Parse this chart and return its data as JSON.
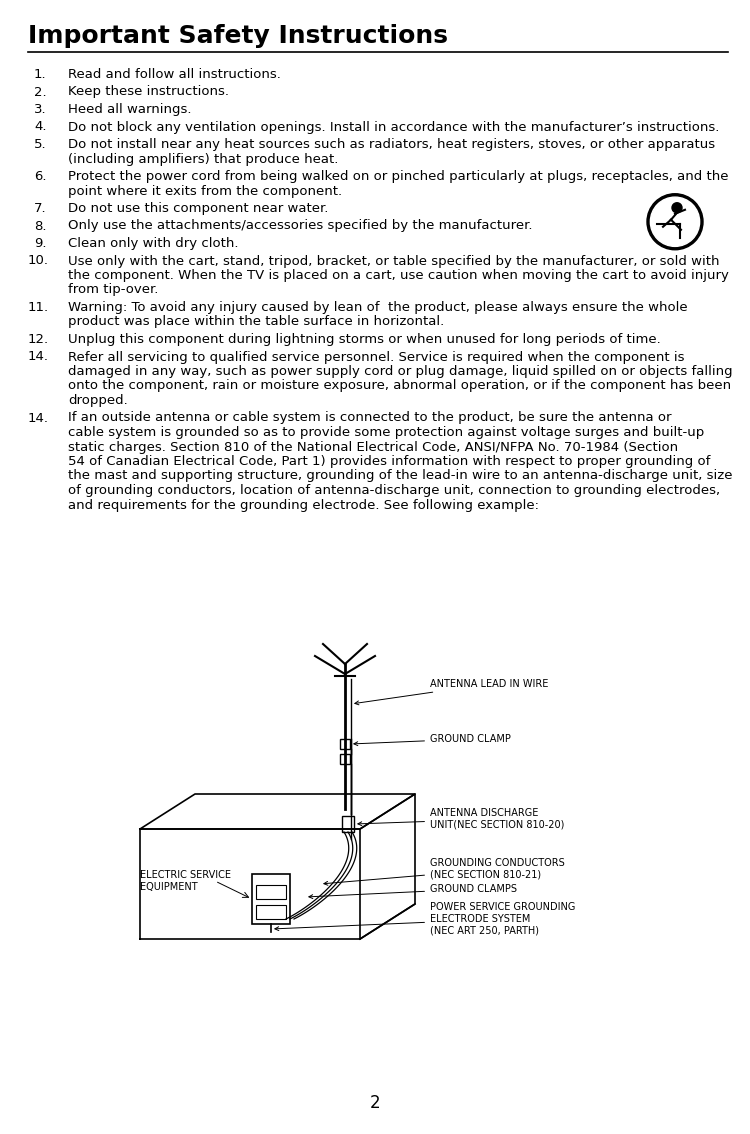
{
  "title": "Important Safety Instructions",
  "title_fontsize": 18,
  "body_fontsize": 9.5,
  "small_fontsize": 7.5,
  "page_number": "2",
  "bg_color": "#ffffff",
  "text_color": "#000000",
  "items": [
    {
      "num": "1.",
      "text": "Read and follow all instructions."
    },
    {
      "num": "2.",
      "text": "Keep these instructions."
    },
    {
      "num": "3.",
      "text": "Heed all warnings."
    },
    {
      "num": "4.",
      "text": "Do not block any ventilation openings. Install in accordance with the manufacturer’s instructions."
    },
    {
      "num": "5.",
      "text": "Do not install near any heat sources such as radiators, heat registers, stoves, or other apparatus\n(including amplifiers) that produce heat."
    },
    {
      "num": "6.",
      "text": "Protect the power cord from being walked on or pinched particularly at plugs, receptacles, and the\npoint where it exits from the component."
    },
    {
      "num": "7.",
      "text": "Do not use this component near water."
    },
    {
      "num": "8.",
      "text": "Only use the attachments/accessories specified by the manufacturer."
    },
    {
      "num": "9.",
      "text": "Clean only with dry cloth."
    },
    {
      "num": "10.",
      "text": "Use only with the cart, stand, tripod, bracket, or table specified by the manufacturer, or sold with\nthe component. When the TV is placed on a cart, use caution when moving the cart to avoid injury\nfrom tip-over."
    },
    {
      "num": "11.",
      "text": "Warning: To avoid any injury caused by lean of  the product, please always ensure the whole\nproduct was place within the table surface in horizontal."
    },
    {
      "num": "12.",
      "text": "Unplug this component during lightning storms or when unused for long periods of time."
    },
    {
      "num": "14.",
      "text": "Refer all servicing to qualified service personnel. Service is required when the component is\ndamaged in any way, such as power supply cord or plug damage, liquid spilled on or objects falling\nonto the component, rain or moisture exposure, abnormal operation, or if the component has been\ndropped."
    },
    {
      "num": "14.",
      "text": "If an outside antenna or cable system is connected to the product, be sure the antenna or\ncable system is grounded so as to provide some protection against voltage surges and built-up\nstatic charges. Section 810 of the National Electrical Code, ANSI/NFPA No. 70-1984 (Section\n54 of Canadian Electrical Code, Part 1) provides information with respect to proper grounding of\nthe mast and supporting structure, grounding of the lead-in wire to an antenna-discharge unit, size\nof grounding conductors, location of antenna-discharge unit, connection to grounding electrodes,\nand requirements for the grounding electrode. See following example:"
    }
  ],
  "diagram": {
    "antenna_lead": "ANTENNA LEAD IN WIRE",
    "ground_clamp": "GROUND CLAMP",
    "antenna_discharge": "ANTENNA DISCHARGE\nUNIT(NEC SECTION 810-20)",
    "grounding_conductors": "GROUNDING CONDUCTORS\n(NEC SECTION 810-21)",
    "ground_clamps": "GROUND CLAMPS",
    "electric_service": "ELECTRIC SERVICE\nEQUIPMENT",
    "power_service": "POWER SERVICE GROUNDING\nELECTRODE SYSTEM\n(NEC ART 250, PARTH)"
  }
}
